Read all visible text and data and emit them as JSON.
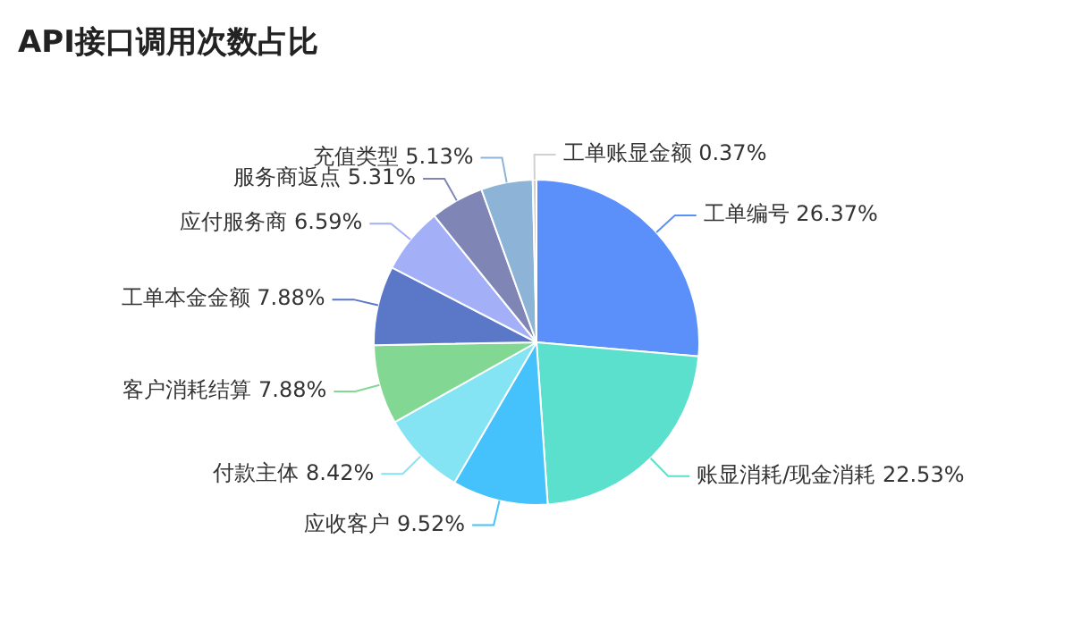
{
  "chart_data": {
    "type": "pie",
    "title": "API接口调用次数占比",
    "categories": [
      "工单编号",
      "账显消耗/现金消耗",
      "应收客户",
      "付款主体",
      "客户消耗结算",
      "工单本金金额",
      "应付服务商",
      "服务商返点",
      "充值类型",
      "工单账显金额"
    ],
    "values": [
      26.37,
      22.53,
      9.52,
      8.42,
      7.88,
      7.88,
      6.59,
      5.31,
      5.13,
      0.37
    ],
    "value_labels": [
      "26.37%",
      "22.53%",
      "9.52%",
      "8.42%",
      "7.88%",
      "7.88%",
      "6.59%",
      "5.31%",
      "5.13%",
      "0.37%"
    ],
    "colors": [
      "#5b8ff9",
      "#5ae0cc",
      "#45c2fb",
      "#84e4f4",
      "#82d892",
      "#5b78c8",
      "#a3b0f8",
      "#7f86b5",
      "#8db4d6",
      "#d0d0d0"
    ]
  }
}
